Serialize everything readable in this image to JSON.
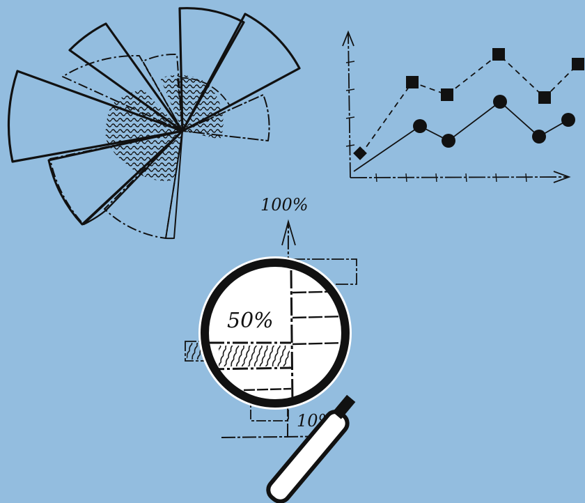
{
  "colors": {
    "background": "#93bddf",
    "ink": "#111111",
    "lens_fill": "#ffffff"
  },
  "labels": {
    "top_percent": "100%",
    "lens_percent": "50%",
    "bottom_percent": "10%"
  },
  "icons": {
    "rose_chart": "sketched-polar-rose-chart",
    "line_chart": "sketched-two-series-line-chart",
    "bar_chart": "sketched-horizontal-bar-chart",
    "magnifier": "magnifying-glass-icon"
  }
}
